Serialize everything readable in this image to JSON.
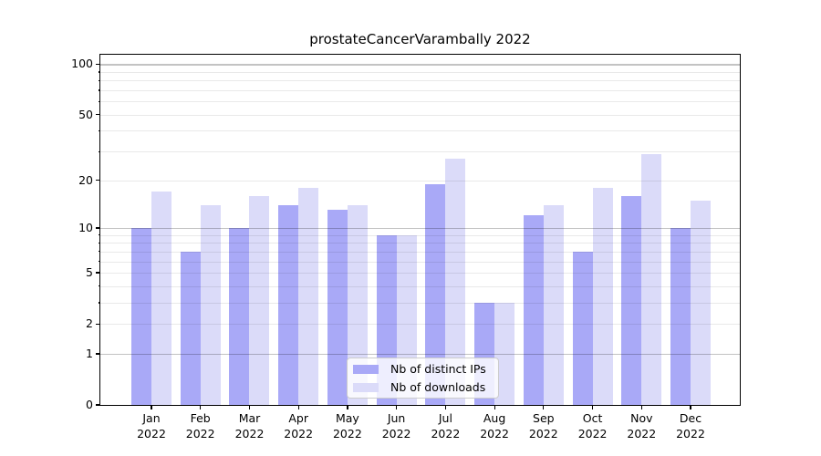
{
  "title": "prostateCancerVarambally 2022",
  "chart_data": {
    "type": "bar",
    "title": "prostateCancerVarambally 2022",
    "categories": [
      "Jan 2022",
      "Feb 2022",
      "Mar 2022",
      "Apr 2022",
      "May 2022",
      "Jun 2022",
      "Jul 2022",
      "Aug 2022",
      "Sep 2022",
      "Oct 2022",
      "Nov 2022",
      "Dec 2022"
    ],
    "x_months": [
      "Jan",
      "Feb",
      "Mar",
      "Apr",
      "May",
      "Jun",
      "Jul",
      "Aug",
      "Sep",
      "Oct",
      "Nov",
      "Dec"
    ],
    "x_year": "2022",
    "series": [
      {
        "name": "Nb of distinct IPs",
        "color": "#a9a9f7",
        "values": [
          10,
          7,
          10,
          14,
          13,
          9,
          19,
          3,
          12,
          7,
          16,
          10
        ]
      },
      {
        "name": "Nb of downloads",
        "color": "#dbdbf9",
        "values": [
          17,
          14,
          16,
          18,
          14,
          9,
          27,
          3,
          14,
          18,
          29,
          15
        ]
      }
    ],
    "yscale": "log10(1+v)",
    "ylim": [
      0,
      114
    ],
    "ytick_values": [
      100,
      50,
      20,
      10,
      5,
      2,
      1,
      0
    ],
    "ytick_labels": [
      "100",
      "50",
      "20",
      "10",
      "5",
      "2",
      "1",
      "0"
    ],
    "major_grid_values": [
      1,
      10,
      100
    ],
    "minor_grid_values": [
      2,
      3,
      4,
      5,
      6,
      7,
      8,
      9,
      20,
      30,
      40,
      50,
      60,
      70,
      80,
      90
    ],
    "grid": "on",
    "legend_position": "lower center",
    "xlabel": "",
    "ylabel": ""
  },
  "legend": {
    "items": [
      {
        "label": "Nb of distinct IPs",
        "color": "#a9a9f7"
      },
      {
        "label": "Nb of downloads",
        "color": "#dbdbf9"
      }
    ]
  }
}
